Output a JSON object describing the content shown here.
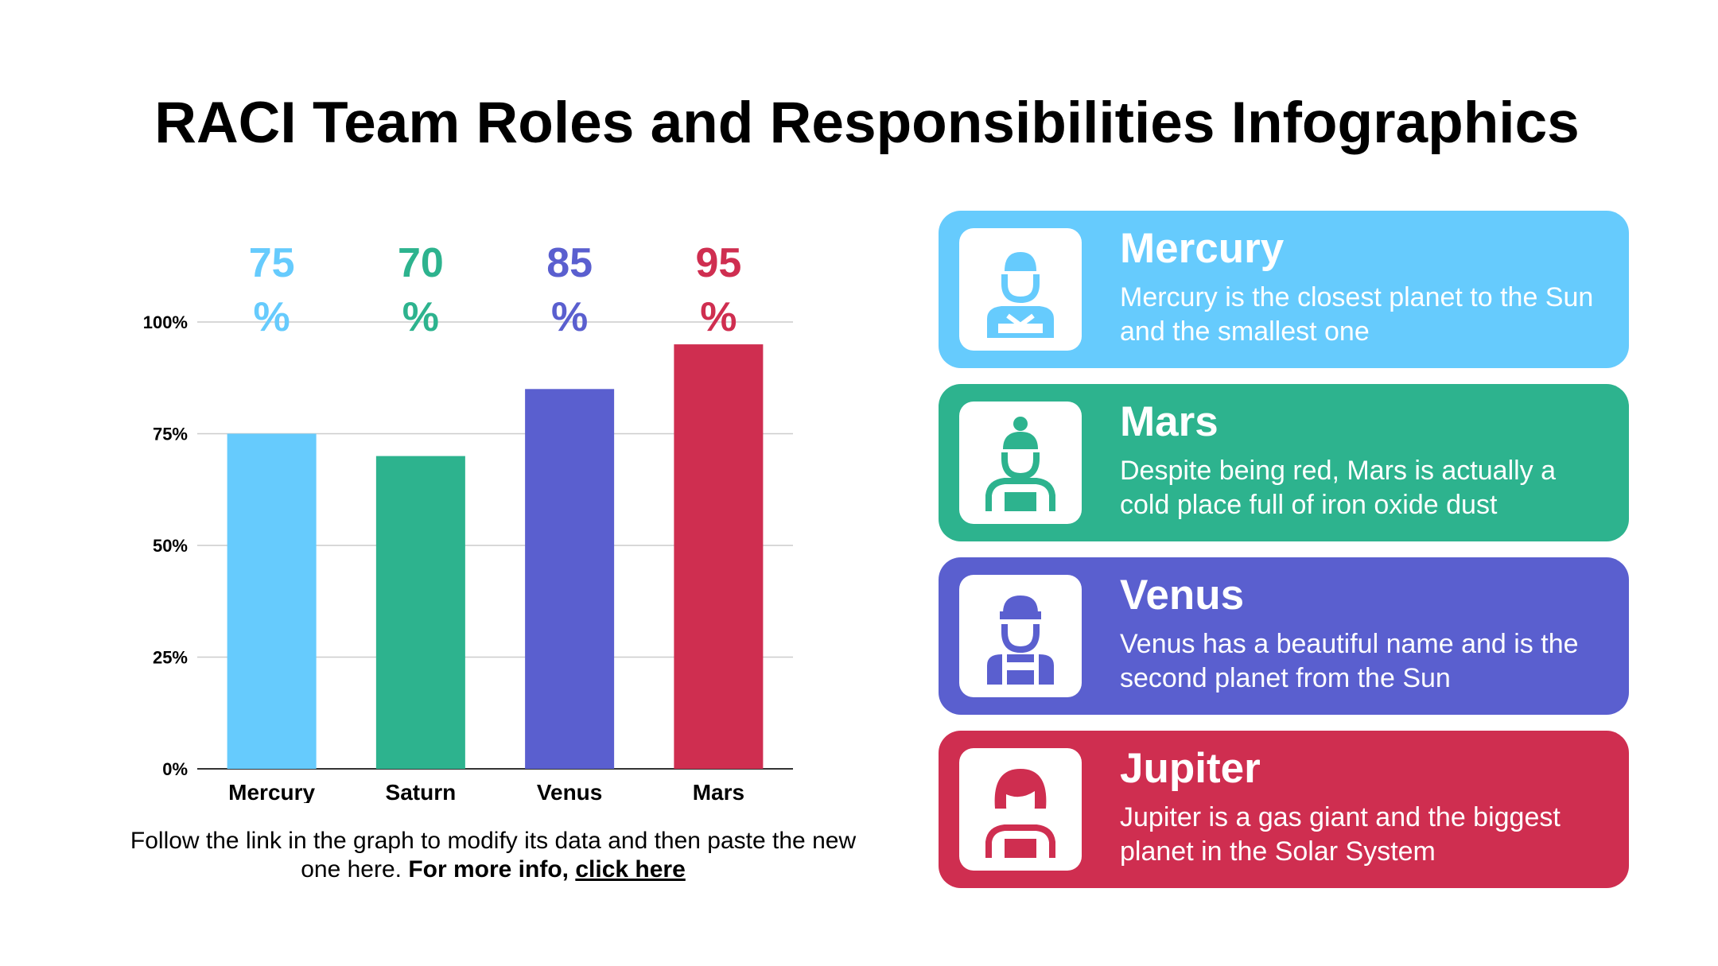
{
  "title": "RACI Team Roles and Responsibilities Infographics",
  "chart_data": {
    "type": "bar",
    "categories": [
      "Mercury",
      "Saturn",
      "Venus",
      "Mars"
    ],
    "values": [
      75,
      70,
      85,
      95
    ],
    "value_labels": [
      "75 %",
      "70 %",
      "85 %",
      "95 %"
    ],
    "colors": [
      "#66cbfd",
      "#2db38e",
      "#5a5fcf",
      "#cf2e50"
    ],
    "y_ticks": [
      "0%",
      "25%",
      "50%",
      "75%",
      "100%"
    ],
    "ylim": [
      0,
      100
    ],
    "grid": true,
    "xlabel": "",
    "ylabel": ""
  },
  "footnote": {
    "text": "Follow the link in the graph to modify its data and then paste the new one here.",
    "bold": "For more info,",
    "link": "click here"
  },
  "cards": [
    {
      "title": "Mercury",
      "description": "Mercury is the closest planet to the Sun and the smallest one",
      "color": "#66cbfd",
      "icon": "worker-icon"
    },
    {
      "title": "Mars",
      "description": "Despite being red, Mars is actually a cold place full of iron oxide dust",
      "color": "#2db38e",
      "icon": "woman-bun-icon"
    },
    {
      "title": "Venus",
      "description": "Venus has a beautiful name and is the second planet from the Sun",
      "color": "#5a5fcf",
      "icon": "cap-worker-icon"
    },
    {
      "title": "Jupiter",
      "description": "Jupiter is a gas giant and the biggest planet in the Solar System",
      "color": "#cf2e50",
      "icon": "woman-icon"
    }
  ]
}
